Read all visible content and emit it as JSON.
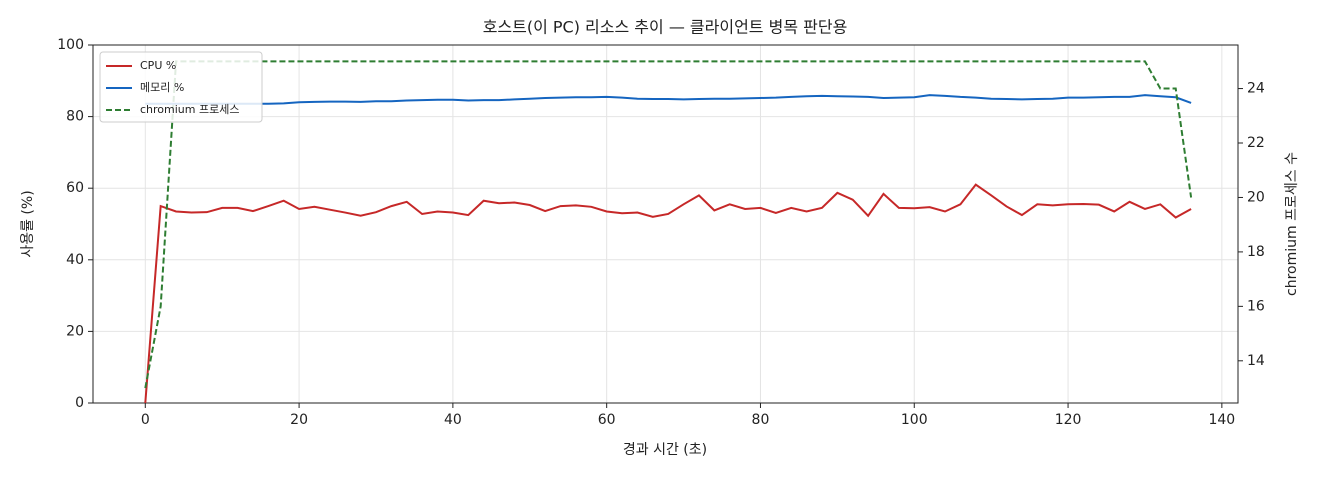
{
  "chart_data": {
    "type": "line",
    "title": "호스트(이 PC) 리소스 추이 — 클라이언트 병목 판단용",
    "x_label": "경과 시간 (초)",
    "y_label": "사용률 (%)",
    "y2_label": "chromium 프로세스 수",
    "x": [
      0,
      2,
      4,
      6,
      8,
      10,
      12,
      14,
      16,
      18,
      20,
      22,
      24,
      26,
      28,
      30,
      32,
      34,
      36,
      38,
      40,
      42,
      44,
      46,
      48,
      50,
      52,
      54,
      56,
      58,
      60,
      62,
      64,
      66,
      68,
      70,
      72,
      74,
      76,
      78,
      80,
      82,
      84,
      86,
      88,
      90,
      92,
      94,
      96,
      98,
      100,
      102,
      104,
      106,
      108,
      110,
      112,
      114,
      116,
      118,
      120,
      122,
      124,
      126,
      128,
      130,
      132,
      134,
      136
    ],
    "series": [
      {
        "name": "CPU %",
        "color": "#c62828",
        "linestyle": "solid",
        "values": [
          0,
          55,
          53.5,
          53.2,
          53.3,
          54.5,
          54.5,
          53.6,
          55,
          56.5,
          54.2,
          54.8,
          54,
          53.2,
          52.3,
          53.3,
          55,
          56.2,
          52.8,
          53.5,
          53.2,
          52.5,
          56.5,
          55.8,
          56,
          55.3,
          53.6,
          55,
          55.2,
          54.8,
          53.5,
          53,
          53.2,
          52,
          52.8,
          55.5,
          58,
          53.8,
          55.5,
          54.2,
          54.5,
          53.1,
          54.5,
          53.5,
          54.5,
          58.7,
          56.8,
          52.3,
          58.4,
          54.5,
          54.4,
          54.7,
          53.5,
          55.5,
          61,
          58,
          54.9,
          52.5,
          55.5,
          55.2,
          55.5,
          55.6,
          55.4,
          53.5,
          56.2,
          54.2,
          55.5,
          51.8,
          54.2
        ]
      },
      {
        "name": "메모리 %",
        "color": "#1565c0",
        "linestyle": "solid",
        "values": [
          83.6,
          83.6,
          83.6,
          83.6,
          83.6,
          83.6,
          83.6,
          83.6,
          83.6,
          83.7,
          84,
          84.1,
          84.2,
          84.2,
          84.1,
          84.3,
          84.3,
          84.5,
          84.6,
          84.7,
          84.7,
          84.5,
          84.6,
          84.6,
          84.8,
          85,
          85.2,
          85.3,
          85.4,
          85.4,
          85.5,
          85.3,
          85,
          84.9,
          84.9,
          84.8,
          84.9,
          85,
          85,
          85.1,
          85.2,
          85.3,
          85.5,
          85.7,
          85.8,
          85.7,
          85.6,
          85.5,
          85.2,
          85.3,
          85.4,
          86,
          85.8,
          85.5,
          85.3,
          85,
          84.9,
          84.8,
          84.9,
          85,
          85.3,
          85.3,
          85.4,
          85.5,
          85.5,
          86,
          85.7,
          85.4,
          83.8
        ]
      },
      {
        "name": "chromium 프로세스",
        "color": "#2e7d32",
        "linestyle": "dashed",
        "axis": "y2",
        "values": [
          13,
          16,
          25,
          25,
          25,
          25,
          25,
          25,
          25,
          25,
          25,
          25,
          25,
          25,
          25,
          25,
          25,
          25,
          25,
          25,
          25,
          25,
          25,
          25,
          25,
          25,
          25,
          25,
          25,
          25,
          25,
          25,
          25,
          25,
          25,
          25,
          25,
          25,
          25,
          25,
          25,
          25,
          25,
          25,
          25,
          25,
          25,
          25,
          25,
          25,
          25,
          25,
          25,
          25,
          25,
          25,
          25,
          25,
          25,
          25,
          25,
          25,
          25,
          25,
          25,
          25,
          24,
          24,
          20
        ]
      }
    ],
    "xlim": [
      -6.8,
      142.1
    ],
    "xticks": [
      0,
      20,
      40,
      60,
      80,
      100,
      120,
      140
    ],
    "ylim": [
      0,
      100
    ],
    "yticks": [
      0,
      20,
      40,
      60,
      80,
      100
    ],
    "y2lim": [
      12.45,
      25.6
    ],
    "y2ticks": [
      14,
      16,
      18,
      20,
      22,
      24
    ],
    "grid": true,
    "legend": "upper-left"
  }
}
